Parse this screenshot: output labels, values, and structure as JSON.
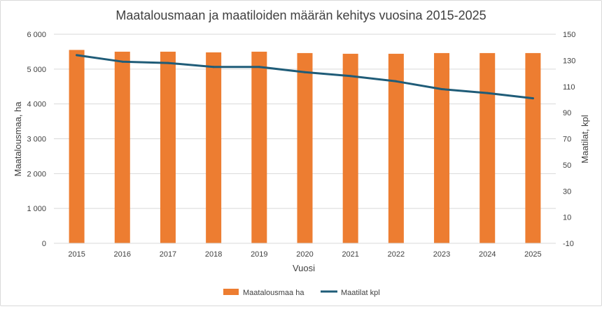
{
  "chart_data": {
    "type": "bar",
    "title": "Maatalousmaan ja maatiloiden määrän kehitys vuosina 2015-2025",
    "xlabel": "Vuosi",
    "ylabel": "Maatalousmaa, ha",
    "y2label": "Maatilat, kpl",
    "categories": [
      "2015",
      "2016",
      "2017",
      "2018",
      "2019",
      "2020",
      "2021",
      "2022",
      "2023",
      "2024",
      "2025"
    ],
    "ylim": [
      0,
      6000
    ],
    "y2lim": [
      -10,
      150
    ],
    "yticks": [
      0,
      1000,
      2000,
      3000,
      4000,
      5000,
      6000
    ],
    "yticklabels": [
      "0",
      "1 000",
      "2 000",
      "3 000",
      "4 000",
      "5 000",
      "6 000"
    ],
    "y2ticks": [
      -10,
      10,
      30,
      50,
      70,
      90,
      110,
      130,
      150
    ],
    "y2ticklabels": [
      "-10",
      "10",
      "30",
      "50",
      "70",
      "90",
      "110",
      "130",
      "150"
    ],
    "grid": true,
    "legend_position": "bottom",
    "series": [
      {
        "name": "Maatalousmaa ha",
        "type": "bar",
        "axis": "left",
        "color": "#ed7d31",
        "values": [
          5550,
          5500,
          5500,
          5480,
          5500,
          5460,
          5440,
          5440,
          5460,
          5460,
          5460
        ]
      },
      {
        "name": "Maatilat kpl",
        "type": "line",
        "axis": "right",
        "color": "#1f5c78",
        "values": [
          134,
          129,
          128,
          125,
          125,
          121,
          118,
          114,
          108,
          105,
          101
        ]
      }
    ]
  }
}
